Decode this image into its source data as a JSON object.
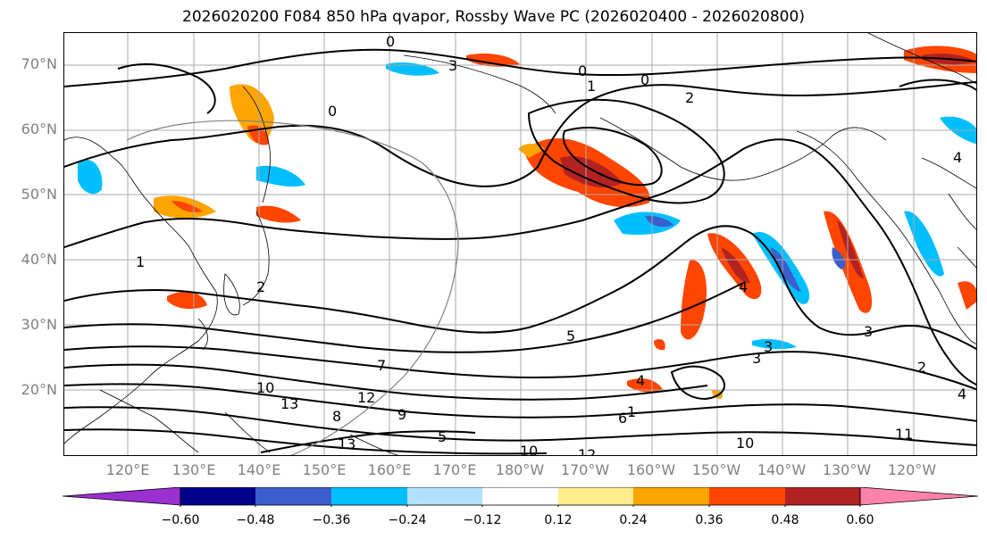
{
  "title": "2026020200 F084 850 hPa qvapor, Rossby Wave PC (2026020400 - 2026020800)",
  "lat_labels": [
    "70°N",
    "60°N",
    "50°N",
    "40°N",
    "30°N",
    "20°N"
  ],
  "lon_labels": [
    "120°E",
    "130°E",
    "140°E",
    "150°E",
    "160°E",
    "170°E",
    "180°W",
    "170°W",
    "160°W",
    "150°W",
    "140°W",
    "130°W",
    "120°W"
  ],
  "colorbar": {
    "tick_labels": [
      "−0.60",
      "−0.48",
      "−0.36",
      "−0.24",
      "−0.12",
      "0.12",
      "0.24",
      "0.36",
      "0.48",
      "0.60"
    ],
    "colors": [
      "#9b30d0",
      "#00008b",
      "#3a5fcd",
      "#00bfff",
      "#b0e2ff",
      "#ffffff",
      "#ffec8b",
      "#ffa500",
      "#ff4500",
      "#b22222",
      "#ff82ab"
    ]
  },
  "contour_labels": [
    "0",
    "0",
    "1",
    "0",
    "2",
    "3",
    "0",
    "5",
    "7",
    "10",
    "13",
    "12",
    "9",
    "13",
    "8",
    "6",
    "5",
    "10",
    "12",
    "10",
    "1",
    "4",
    "3",
    "3",
    "4",
    "2",
    "3",
    "4",
    "11",
    "4",
    "2",
    "1"
  ]
}
